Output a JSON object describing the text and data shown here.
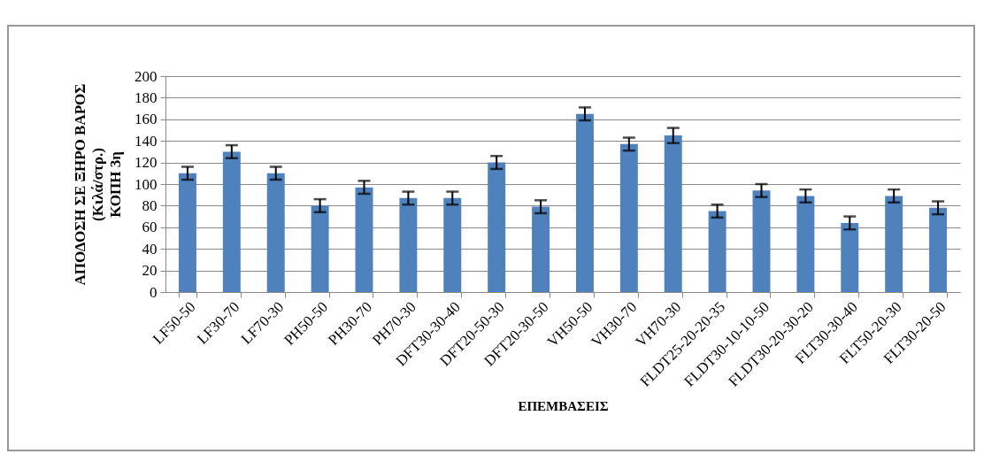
{
  "chart_data": {
    "type": "bar",
    "ylabel": "ΑΠΟΔΟΣΗ ΣΕ ΞΗΡΟ ΒΑΡΟΣ\n(Κιλά/στρ.)\nΚΟΠΗ 3η",
    "xlabel": "ΕΠΕΜΒΑΣΕΙΣ",
    "categories": [
      "LF50-50",
      "LF30-70",
      "LF70-30",
      "PH50-50",
      "PH30-70",
      "PH70-30",
      "DFT30-30-40",
      "DFT20-50-30",
      "DFT20-30-50",
      "VH50-50",
      "VH30-70",
      "VH70-30",
      "FLDT25-20-20-35",
      "FLDT30-10-10-50",
      "FLDT30-20-30-20",
      "FLT30-30-40",
      "FLT50-20-30",
      "FLT30-20-50"
    ],
    "values": [
      110,
      130,
      110,
      80,
      97,
      87,
      87,
      120,
      79,
      165,
      137,
      145,
      75,
      94,
      89,
      64,
      89,
      78
    ],
    "errors": [
      6,
      6,
      6,
      6,
      6,
      6,
      6,
      6,
      6,
      6,
      6,
      7,
      6,
      6,
      6,
      6,
      6,
      6
    ],
    "color": "#4f81bd",
    "ylim": [
      0,
      200
    ],
    "yticks": [
      0,
      20,
      40,
      60,
      80,
      100,
      120,
      140,
      160,
      180,
      200
    ],
    "grid": "y"
  }
}
